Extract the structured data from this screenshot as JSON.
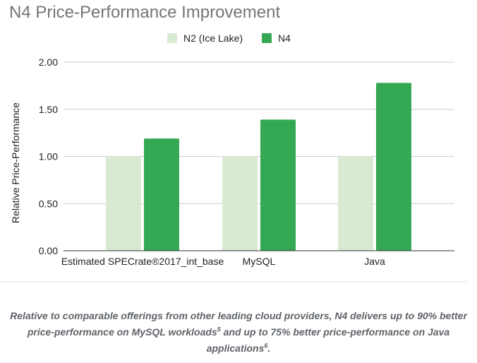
{
  "chart_data": {
    "type": "bar",
    "title": "N4 Price-Performance Improvement",
    "ylabel": "Relative Price-Performance",
    "xlabel": "",
    "categories": [
      "Estimated SPECrate®2017_int_base",
      "MySQL",
      "Java"
    ],
    "series": [
      {
        "name": "N2 (Ice Lake)",
        "values": [
          1.0,
          1.0,
          1.0
        ],
        "color": "#d9ead3"
      },
      {
        "name": "N4",
        "values": [
          1.19,
          1.39,
          1.78
        ],
        "color": "#34a853"
      }
    ],
    "ylim": [
      0,
      2.0
    ],
    "yticks": [
      "0.00",
      "0.50",
      "1.00",
      "1.50",
      "2.00"
    ],
    "ytick_values": [
      0,
      0.5,
      1.0,
      1.5,
      2.0
    ],
    "grid": true,
    "legend_position": "top-center",
    "gridline_color": "#cccccc",
    "axis_color": "#333333"
  },
  "caption": {
    "part1": "Relative to comparable offerings from other leading cloud providers, N4 delivers up to 90% better price-performance on MySQL workloads",
    "sup1": "5",
    "part2": " and up to 75% better price-performance on Java applications",
    "sup2": "6",
    "part3": "."
  }
}
